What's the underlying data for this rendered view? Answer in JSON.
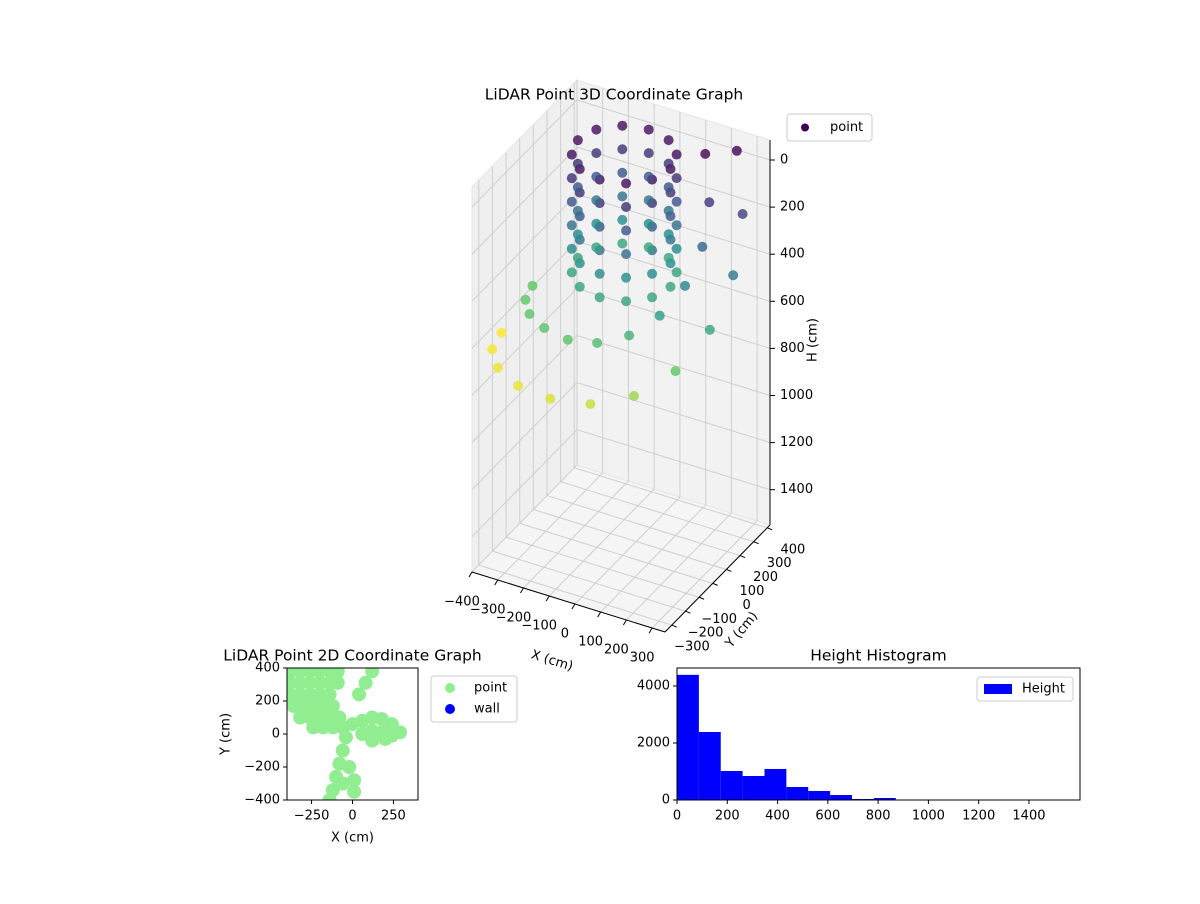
{
  "chart_data": [
    {
      "type": "scatter3d",
      "title": "LiDAR Point 3D Coordinate Graph",
      "xlabel": "X (cm)",
      "ylabel": "Y (cm)",
      "zlabel": "H (cm)",
      "xlim": [
        -400,
        350
      ],
      "ylim": [
        -350,
        420
      ],
      "zlim": [
        -85,
        1550
      ],
      "z_inverted": true,
      "xticks": [
        {
          "value": -400,
          "label": "−400"
        },
        {
          "value": -300,
          "label": "−300"
        },
        {
          "value": -200,
          "label": "−200"
        },
        {
          "value": -100,
          "label": "−100"
        },
        0,
        100,
        200,
        300
      ],
      "yticks": [
        {
          "value": -300,
          "label": "−300"
        },
        {
          "value": -200,
          "label": "−200"
        },
        {
          "value": -100,
          "label": "−100"
        },
        0,
        100,
        200,
        300,
        400
      ],
      "zticks": [
        0,
        200,
        400,
        600,
        800,
        1000,
        1200,
        1400
      ],
      "colormap": "viridis",
      "grid": true,
      "legend": "upper right",
      "series": [
        {
          "name": "point",
          "color": "#440154",
          "x": [
            80,
            56,
            -10,
            -100,
            -190,
            -256,
            -280,
            -256,
            -190,
            -100,
            -10,
            56,
            80,
            56,
            -10,
            -100,
            -190,
            -256,
            -280,
            -256,
            -190,
            -100,
            -10,
            56,
            80,
            56,
            -10,
            -100,
            -190,
            -256,
            -280,
            -256,
            -190,
            -100,
            -10,
            56,
            80,
            56,
            -10,
            -100,
            -190,
            -256,
            -280,
            -256,
            -190,
            -100,
            -10,
            56,
            80,
            56,
            -10,
            -100,
            -190,
            -256,
            -280,
            -256,
            -190,
            -100,
            -10,
            56,
            80,
            56,
            -10,
            -100,
            -190,
            -256,
            -280,
            -256,
            -190,
            -100,
            -10,
            56,
            -550,
            -523,
            -445,
            -325,
            -178,
            -22,
            125,
            245,
            323,
            350,
            323,
            245,
            -430,
            -410,
            -353,
            -265,
            -157,
            -43,
            65,
            153,
            210,
            230,
            210,
            153
          ],
          "y": [
            200,
            290,
            356,
            380,
            356,
            290,
            200,
            110,
            44,
            20,
            44,
            110,
            200,
            290,
            356,
            380,
            356,
            290,
            200,
            110,
            44,
            20,
            44,
            110,
            200,
            290,
            356,
            380,
            356,
            290,
            200,
            110,
            44,
            20,
            44,
            110,
            200,
            290,
            356,
            380,
            356,
            290,
            200,
            110,
            44,
            20,
            44,
            110,
            200,
            290,
            356,
            380,
            356,
            290,
            200,
            110,
            44,
            20,
            44,
            110,
            200,
            290,
            356,
            380,
            356,
            290,
            200,
            110,
            44,
            20,
            44,
            110,
            150,
            30,
            -75,
            -153,
            -195,
            -195,
            -153,
            -75,
            30,
            150,
            270,
            375,
            150,
            61,
            -17,
            -75,
            -106,
            -106,
            -75,
            -17,
            61,
            150,
            239,
            317
          ],
          "z": [
            0,
            0,
            0,
            0,
            0,
            0,
            0,
            0,
            0,
            0,
            0,
            0,
            100,
            100,
            100,
            100,
            100,
            100,
            100,
            100,
            100,
            100,
            100,
            100,
            200,
            200,
            200,
            200,
            200,
            200,
            200,
            200,
            200,
            200,
            200,
            200,
            300,
            300,
            300,
            300,
            300,
            300,
            300,
            300,
            300,
            300,
            300,
            300,
            400,
            400,
            400,
            400,
            400,
            400,
            400,
            400,
            400,
            400,
            400,
            400,
            500,
            500,
            500,
            500,
            500,
            500,
            500,
            500,
            500,
            500,
            500,
            500,
            880,
            870,
            860,
            850,
            830,
            800,
            740,
            640,
            500,
            330,
            150,
            -30,
            640,
            640,
            635,
            630,
            625,
            600,
            550,
            470,
            370,
            250,
            120,
            -20
          ]
        }
      ]
    },
    {
      "type": "scatter",
      "title": "LiDAR Point 2D Coordinate Graph",
      "xlabel": "X (cm)",
      "ylabel": "Y (cm)",
      "xlim": [
        -400,
        400
      ],
      "ylim": [
        -400,
        400
      ],
      "xticks": [
        {
          "value": -250,
          "label": "−250"
        },
        0,
        250
      ],
      "yticks": [
        {
          "value": -400,
          "label": "−400"
        },
        {
          "value": -200,
          "label": "−200"
        },
        0,
        200,
        400
      ],
      "legend": "outside right",
      "series": [
        {
          "name": "point",
          "color": "#90ee90",
          "x": [
            -380,
            -320,
            -260,
            -200,
            -140,
            -90,
            -380,
            -320,
            -260,
            -200,
            -140,
            -90,
            -380,
            -320,
            -260,
            -200,
            -140,
            -360,
            -300,
            -240,
            -180,
            -120,
            -320,
            -260,
            -200,
            -140,
            -80,
            -240,
            -180,
            -120,
            -60,
            40,
            80,
            120,
            0,
            60,
            120,
            180,
            240,
            290,
            60,
            120,
            180,
            240,
            120,
            200,
            -40,
            -60,
            -80,
            -100,
            -120,
            -140,
            -60,
            10,
            10,
            -20
          ],
          "y": [
            380,
            380,
            380,
            380,
            380,
            380,
            310,
            310,
            310,
            310,
            310,
            310,
            240,
            240,
            240,
            240,
            240,
            170,
            170,
            170,
            170,
            170,
            100,
            100,
            100,
            100,
            100,
            40,
            40,
            40,
            40,
            240,
            310,
            380,
            60,
            80,
            100,
            90,
            60,
            10,
            0,
            20,
            10,
            -10,
            -40,
            -30,
            -20,
            -100,
            -180,
            -260,
            -340,
            -400,
            -300,
            -280,
            -350,
            -200
          ]
        },
        {
          "name": "wall",
          "color": "#0000ff",
          "x": [],
          "y": []
        }
      ]
    },
    {
      "type": "histogram",
      "title": "Height Histogram",
      "xlim": [
        0,
        1603
      ],
      "ylim": [
        0,
        4630
      ],
      "xticks": [
        0,
        200,
        400,
        600,
        800,
        1000,
        1200,
        1400
      ],
      "yticks": [
        0,
        2000,
        4000
      ],
      "legend": "upper right",
      "series": [
        {
          "name": "Height",
          "color": "#0000ff",
          "bins": [
            0,
            87,
            174,
            261,
            348,
            435,
            522,
            609,
            696,
            783,
            870,
            957,
            1044,
            1131,
            1218,
            1305,
            1392,
            1479
          ],
          "counts": [
            4390,
            2386,
            1017,
            842,
            1088,
            456,
            316,
            175,
            35,
            70,
            8,
            6,
            5,
            4,
            3,
            3,
            5
          ]
        }
      ]
    }
  ]
}
